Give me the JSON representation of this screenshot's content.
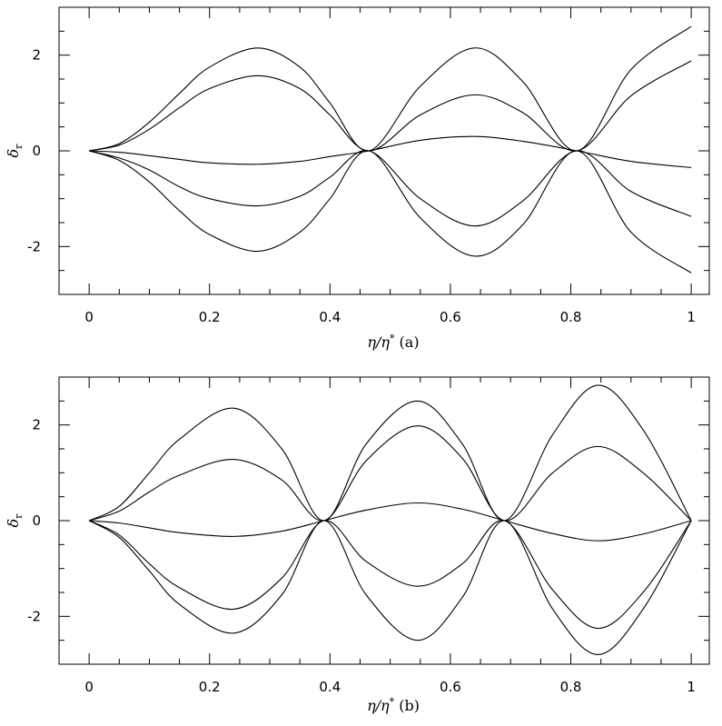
{
  "chart_data": [
    {
      "type": "line",
      "panel": "a",
      "xlabel": "η/η* (a)",
      "ylabel": "δr",
      "xlim": [
        -0.05,
        1.03
      ],
      "ylim": [
        -3.0,
        3.0
      ],
      "x_ticks": [
        "0",
        "0.2",
        "0.4",
        "0.6",
        "0.8",
        "1"
      ],
      "y_ticks": [
        "-2",
        "0",
        "2"
      ],
      "nodes": [
        0.465,
        0.81
      ],
      "series": [
        {
          "x": [
            0,
            0.05,
            0.1,
            0.15,
            0.2,
            0.28,
            0.35,
            0.4,
            0.465,
            0.55,
            0.64,
            0.72,
            0.81,
            0.9,
            1.0
          ],
          "y": [
            0,
            0.15,
            0.6,
            1.2,
            1.75,
            2.15,
            1.75,
            1.0,
            0,
            1.35,
            2.15,
            1.45,
            0,
            1.7,
            2.6
          ]
        },
        {
          "x": [
            0,
            0.05,
            0.1,
            0.15,
            0.2,
            0.28,
            0.35,
            0.4,
            0.465,
            0.55,
            0.64,
            0.72,
            0.81,
            0.9,
            1.0
          ],
          "y": [
            0,
            0.12,
            0.45,
            0.9,
            1.3,
            1.57,
            1.3,
            0.75,
            0,
            0.75,
            1.17,
            0.8,
            0,
            1.15,
            1.88
          ]
        },
        {
          "x": [
            0,
            0.05,
            0.1,
            0.15,
            0.2,
            0.28,
            0.35,
            0.4,
            0.465,
            0.55,
            0.64,
            0.72,
            0.81,
            0.9,
            1.0
          ],
          "y": [
            0,
            -0.03,
            -0.1,
            -0.18,
            -0.25,
            -0.28,
            -0.22,
            -0.12,
            0,
            0.22,
            0.3,
            0.2,
            0,
            -0.22,
            -0.35
          ]
        },
        {
          "x": [
            0,
            0.05,
            0.1,
            0.15,
            0.2,
            0.28,
            0.35,
            0.4,
            0.465,
            0.55,
            0.64,
            0.72,
            0.81,
            0.9,
            1.0
          ],
          "y": [
            0,
            -0.15,
            -0.4,
            -0.75,
            -1.0,
            -1.15,
            -0.95,
            -0.55,
            0,
            -1.0,
            -1.57,
            -1.05,
            0,
            -0.85,
            -1.37
          ]
        },
        {
          "x": [
            0,
            0.05,
            0.1,
            0.15,
            0.2,
            0.28,
            0.35,
            0.4,
            0.465,
            0.55,
            0.64,
            0.72,
            0.81,
            0.9,
            1.0
          ],
          "y": [
            0,
            -0.2,
            -0.65,
            -1.25,
            -1.75,
            -2.1,
            -1.7,
            -1.0,
            0,
            -1.4,
            -2.2,
            -1.55,
            0,
            -1.7,
            -2.55
          ]
        }
      ]
    },
    {
      "type": "line",
      "panel": "b",
      "xlabel": "η/η* (b)",
      "ylabel": "δr",
      "xlim": [
        -0.05,
        1.03
      ],
      "ylim": [
        -3.0,
        3.0
      ],
      "x_ticks": [
        "0",
        "0.2",
        "0.4",
        "0.6",
        "0.8",
        "1"
      ],
      "y_ticks": [
        "-2",
        "0",
        "2"
      ],
      "nodes": [
        0.39,
        0.69,
        1.0
      ],
      "series": [
        {
          "x": [
            0,
            0.05,
            0.1,
            0.15,
            0.24,
            0.32,
            0.39,
            0.46,
            0.545,
            0.62,
            0.69,
            0.77,
            0.845,
            0.92,
            1.0
          ],
          "y": [
            0,
            0.3,
            1.0,
            1.7,
            2.35,
            1.5,
            0,
            1.6,
            2.5,
            1.6,
            0,
            1.8,
            2.83,
            1.9,
            0
          ]
        },
        {
          "x": [
            0,
            0.05,
            0.1,
            0.15,
            0.24,
            0.32,
            0.39,
            0.46,
            0.545,
            0.62,
            0.69,
            0.77,
            0.845,
            0.92,
            1.0
          ],
          "y": [
            0,
            0.2,
            0.6,
            0.95,
            1.28,
            0.85,
            0,
            1.25,
            1.98,
            1.3,
            0,
            1.0,
            1.55,
            1.0,
            0
          ]
        },
        {
          "x": [
            0,
            0.05,
            0.1,
            0.15,
            0.24,
            0.32,
            0.39,
            0.46,
            0.545,
            0.62,
            0.69,
            0.77,
            0.845,
            0.92,
            1.0
          ],
          "y": [
            0,
            -0.05,
            -0.15,
            -0.25,
            -0.33,
            -0.22,
            0,
            0.22,
            0.37,
            0.24,
            0,
            -0.27,
            -0.42,
            -0.28,
            0
          ]
        },
        {
          "x": [
            0,
            0.05,
            0.1,
            0.15,
            0.24,
            0.32,
            0.39,
            0.46,
            0.545,
            0.62,
            0.69,
            0.77,
            0.845,
            0.92,
            1.0
          ],
          "y": [
            0,
            -0.3,
            -0.9,
            -1.4,
            -1.85,
            -1.2,
            0,
            -0.85,
            -1.37,
            -0.9,
            0,
            -1.45,
            -2.25,
            -1.5,
            0
          ]
        },
        {
          "x": [
            0,
            0.05,
            0.1,
            0.15,
            0.24,
            0.32,
            0.39,
            0.46,
            0.545,
            0.62,
            0.69,
            0.77,
            0.845,
            0.92,
            1.0
          ],
          "y": [
            0,
            -0.35,
            -1.05,
            -1.75,
            -2.35,
            -1.55,
            0,
            -1.55,
            -2.5,
            -1.6,
            0,
            -1.85,
            -2.8,
            -1.85,
            0
          ]
        }
      ]
    }
  ]
}
